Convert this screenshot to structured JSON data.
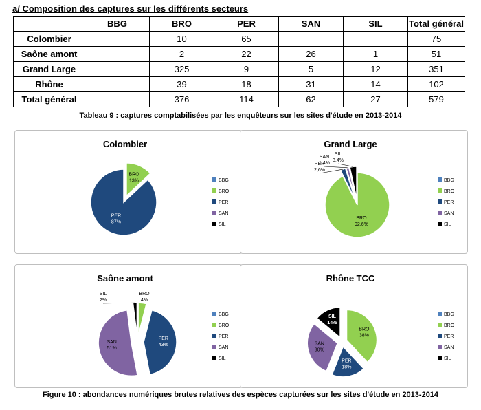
{
  "heading": "a/ Composition des captures sur les différents secteurs",
  "table": {
    "columns": [
      "",
      "BBG",
      "BRO",
      "PER",
      "SAN",
      "SIL",
      "Total général"
    ],
    "rows": [
      {
        "label": "Colombier",
        "cells": [
          "",
          "10",
          "65",
          "",
          "",
          "75"
        ]
      },
      {
        "label": "Saône amont",
        "cells": [
          "",
          "2",
          "22",
          "26",
          "1",
          "51"
        ]
      },
      {
        "label": "Grand Large",
        "cells": [
          "",
          "325",
          "9",
          "5",
          "12",
          "351"
        ]
      },
      {
        "label": "Rhône",
        "cells": [
          "",
          "39",
          "18",
          "31",
          "14",
          "102"
        ]
      },
      {
        "label": "Total général",
        "cells": [
          "",
          "376",
          "114",
          "62",
          "27",
          "579"
        ]
      }
    ],
    "caption": "Tableau 9 : captures comptabilisées par les enquêteurs sur les sites d'étude en 2013-2014"
  },
  "figure_caption": "Figure 10 : abondances numériques brutes relatives des espèces capturées sur les sites d'étude en 2013-2014",
  "colors": {
    "BBG": "#4f81bd",
    "BRO": "#92d050",
    "PER": "#1f497d",
    "SAN": "#8064a2",
    "SIL": "#000000"
  },
  "chart_data": [
    {
      "type": "pie",
      "title": "Colombier",
      "legend": [
        "BBG",
        "BRO",
        "PER",
        "SAN",
        "SIL"
      ],
      "legend_position": "right",
      "slices": [
        {
          "name": "BRO",
          "value": 13,
          "label": "BRO\n13%"
        },
        {
          "name": "PER",
          "value": 87,
          "label": "PER\n87%"
        }
      ]
    },
    {
      "type": "pie",
      "title": "Grand Large",
      "legend": [
        "BBG",
        "BRO",
        "PER",
        "SAN",
        "SIL"
      ],
      "legend_position": "right",
      "slices": [
        {
          "name": "BRO",
          "value": 92.6,
          "label": "BRO\n92,6%"
        },
        {
          "name": "PER",
          "value": 2.6,
          "label": "PER\n2,6%"
        },
        {
          "name": "SAN",
          "value": 1.4,
          "label": "SAN\n1,4%"
        },
        {
          "name": "SIL",
          "value": 3.4,
          "label": "SIL\n3,4%"
        }
      ]
    },
    {
      "type": "pie",
      "title": "Saône amont",
      "legend": [
        "BBG",
        "BRO",
        "PER",
        "SAN",
        "SIL"
      ],
      "legend_position": "right",
      "slices": [
        {
          "name": "BRO",
          "value": 4,
          "label": "BRO\n4%"
        },
        {
          "name": "PER",
          "value": 43,
          "label": "PER\n43%"
        },
        {
          "name": "SAN",
          "value": 51,
          "label": "SAN\n51%"
        },
        {
          "name": "SIL",
          "value": 2,
          "label": "SIL\n2%"
        }
      ]
    },
    {
      "type": "pie",
      "title": "Rhône TCC",
      "legend": [
        "BBG",
        "BRO",
        "PER",
        "SAN",
        "SIL"
      ],
      "legend_position": "right",
      "slices": [
        {
          "name": "BRO",
          "value": 38,
          "label": "BRO\n38%"
        },
        {
          "name": "PER",
          "value": 18,
          "label": "PER\n18%"
        },
        {
          "name": "SAN",
          "value": 30,
          "label": "SAN\n30%"
        },
        {
          "name": "SIL",
          "value": 14,
          "label": "SIL\n14%"
        }
      ]
    }
  ]
}
